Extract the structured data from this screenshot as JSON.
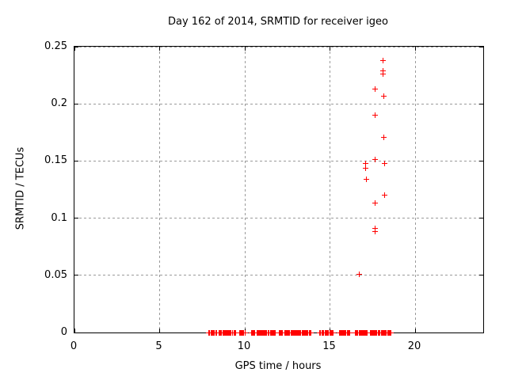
{
  "chart_data": {
    "type": "scatter",
    "title": "Day 162 of 2014, SRMTID for receiver igeo",
    "xlabel": "GPS time / hours",
    "ylabel": "SRMTID / TECUs",
    "xlim": [
      0,
      24
    ],
    "ylim": [
      0,
      0.25
    ],
    "xticks": {
      "values": [
        0,
        5,
        10,
        15,
        20
      ],
      "labels": [
        "0",
        "5",
        "10",
        "15",
        "20"
      ]
    },
    "yticks": {
      "values": [
        0,
        0.05,
        0.1,
        0.15,
        0.2,
        0.25
      ],
      "labels": [
        "0",
        "0.05",
        "0.1",
        "0.15",
        "0.2",
        "0.25"
      ]
    },
    "grid": true,
    "legend": "none",
    "marker": "plus",
    "marker_color": "#ff0000",
    "points": [
      [
        16.7,
        0.051
      ],
      [
        17.1,
        0.148
      ],
      [
        17.1,
        0.144
      ],
      [
        17.15,
        0.134
      ],
      [
        17.65,
        0.213
      ],
      [
        17.65,
        0.19
      ],
      [
        17.67,
        0.151
      ],
      [
        17.67,
        0.113
      ],
      [
        17.67,
        0.091
      ],
      [
        17.67,
        0.088
      ],
      [
        18.13,
        0.238
      ],
      [
        18.13,
        0.229
      ],
      [
        18.13,
        0.226
      ],
      [
        18.15,
        0.207
      ],
      [
        18.15,
        0.171
      ],
      [
        18.19,
        0.148
      ],
      [
        18.22,
        0.12
      ]
    ],
    "baseline_y": 0,
    "baseline_sample_step": 0.05,
    "baseline_segments": [
      [
        7.9,
        8.2
      ],
      [
        8.28,
        8.36
      ],
      [
        8.5,
        9.2
      ],
      [
        9.3,
        9.45
      ],
      [
        9.7,
        10.0
      ],
      [
        10.4,
        10.6
      ],
      [
        10.7,
        11.15
      ],
      [
        11.2,
        11.4
      ],
      [
        11.5,
        11.8
      ],
      [
        12.0,
        12.2
      ],
      [
        12.35,
        12.9
      ],
      [
        12.95,
        13.7
      ],
      [
        13.8,
        13.9
      ],
      [
        14.4,
        14.45
      ],
      [
        14.55,
        14.9
      ],
      [
        15.0,
        15.2
      ],
      [
        15.55,
        16.15
      ],
      [
        16.5,
        16.7
      ],
      [
        16.75,
        17.2
      ],
      [
        17.35,
        17.75
      ],
      [
        17.85,
        18.3
      ],
      [
        18.4,
        18.6
      ]
    ]
  },
  "colors": {
    "background": "#ffffff",
    "border": "#000000",
    "grid": "#9a9a9a",
    "text": "#000000",
    "marker": "#ff0000"
  }
}
